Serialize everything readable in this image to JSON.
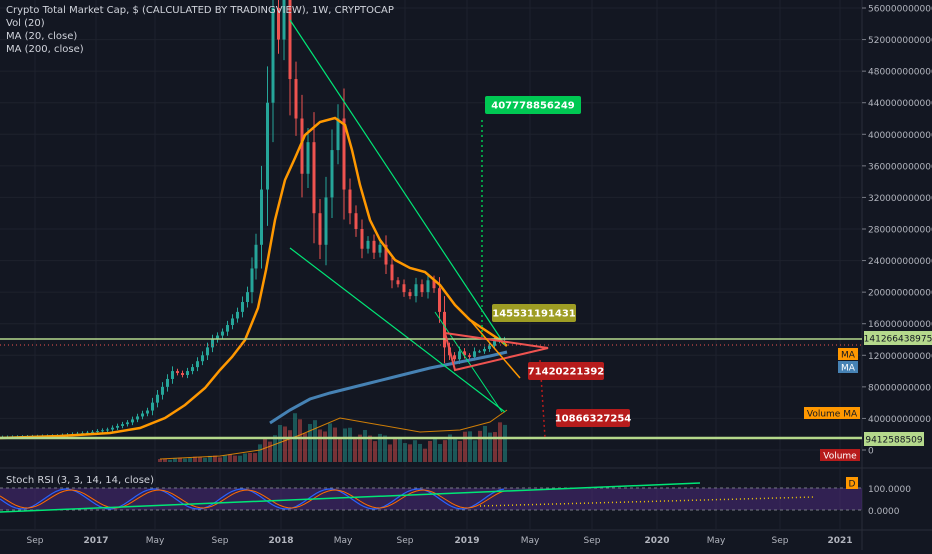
{
  "header": {
    "title": "Crypto Total Market Cap, $ (CALCULATED BY TRADINGVIEW), 1W, CRYPTOCAP",
    "studies": [
      "Vol (20)",
      "MA (20, close)",
      "MA (200, close)"
    ]
  },
  "rsi": {
    "title": "Stoch RSI (3, 3, 14, 14, close)",
    "ticks": [
      "100.0000",
      "0.0000"
    ]
  },
  "chart_data": {
    "type": "candlestick",
    "y_ticks": [
      "560000000000",
      "520000000000",
      "480000000000",
      "440000000000",
      "400000000000",
      "360000000000",
      "320000000000",
      "280000000000",
      "240000000000",
      "200000000000",
      "160000000000",
      "120000000000",
      "80000000000",
      "40000000000",
      "0"
    ],
    "x_ticks": [
      "Sep",
      "2017",
      "May",
      "Sep",
      "2018",
      "May",
      "Sep",
      "2019",
      "May",
      "Sep",
      "2020",
      "May",
      "Sep",
      "2021"
    ],
    "ylim": [
      0,
      580000000000
    ],
    "price_badge": "141266438975",
    "annotations": {
      "target_up": "407778856249",
      "mid": "145531191431",
      "down1": "71420221392",
      "down2": "10866327254",
      "support": "9412588509"
    },
    "axis_tags": {
      "ma_a": "MA",
      "ma_b": "MA",
      "volume_ma": "Volume MA",
      "volume": "Volume",
      "rsi_d": "D"
    },
    "colors": {
      "up": "#26a69a",
      "down": "#ef5350",
      "ma20": "#ff9800",
      "ma200": "#4682b4",
      "trend": "#00e676",
      "support": "#b5d98c",
      "green_label": "#00c853",
      "olive_label": "#9e9d24",
      "red_label": "#b71c1c",
      "stoch_k": "#2962ff",
      "stoch_d": "#ff6d00"
    }
  }
}
